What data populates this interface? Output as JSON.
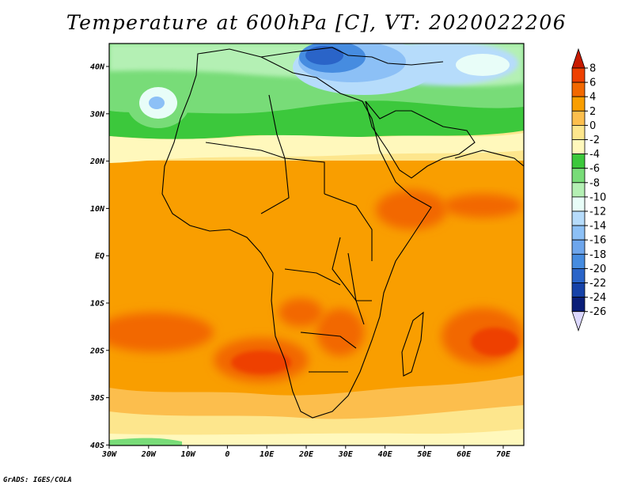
{
  "title": "Temperature at 600hPa [C], VT: 2020022206",
  "credit": "GrADS: IGES/COLA",
  "map": {
    "lon_labels": [
      "30W",
      "20W",
      "10W",
      "0",
      "10E",
      "20E",
      "30E",
      "40E",
      "50E",
      "60E",
      "70E"
    ],
    "lat_labels": [
      "40N",
      "30N",
      "20N",
      "10N",
      "EQ",
      "10S",
      "20S",
      "30S",
      "40S"
    ]
  },
  "colorbar": {
    "labels": [
      "8",
      "6",
      "4",
      "2",
      "0",
      "-2",
      "-4",
      "-6",
      "-8",
      "-10",
      "-12",
      "-14",
      "-16",
      "-18",
      "-20",
      "-22",
      "-24",
      "-26"
    ],
    "colors": [
      "#c81a00",
      "#ee4000",
      "#f26800",
      "#f99e00",
      "#fcbe4d",
      "#fde68d",
      "#fff8bc",
      "#3cc83c",
      "#78dc78",
      "#b4f0b4",
      "#e8fdf8",
      "#b6dcfb",
      "#8cc0f6",
      "#6ea6ec",
      "#468ce0",
      "#2a64c8",
      "#1642a8",
      "#0a1e78",
      "#dcd8ff"
    ]
  }
}
